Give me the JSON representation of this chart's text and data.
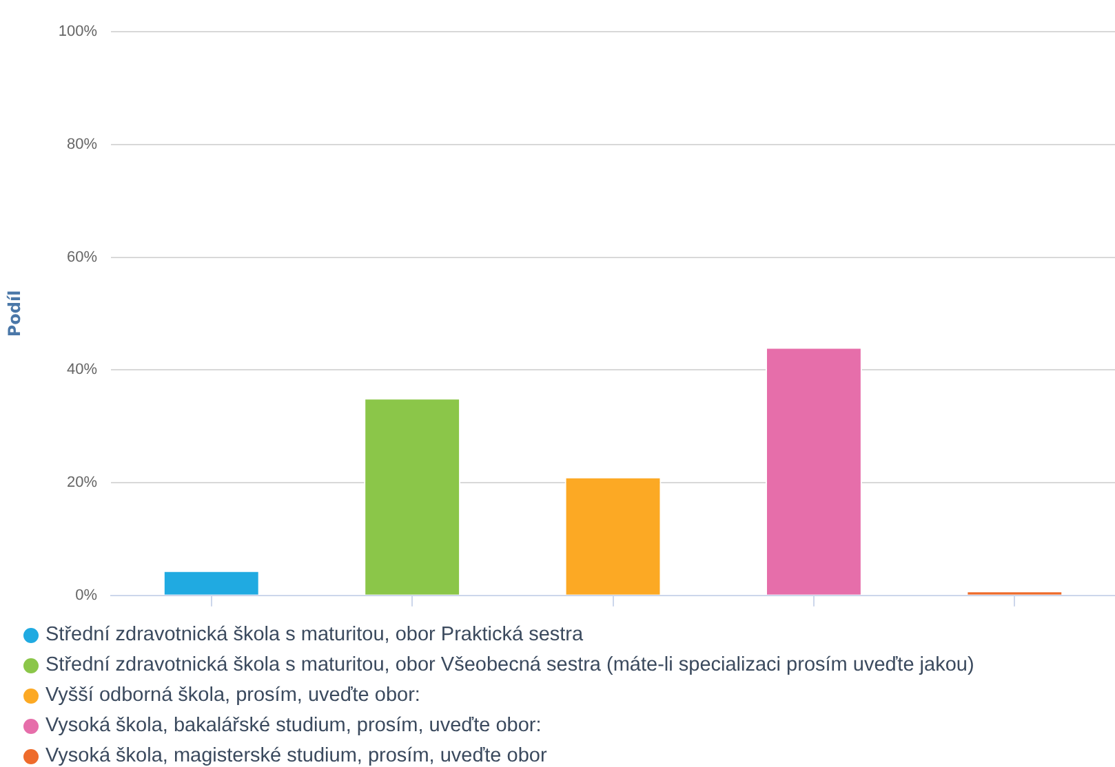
{
  "chart_data": {
    "type": "bar",
    "ylabel": "Podíl",
    "categories": [
      null,
      null,
      null,
      null,
      null
    ],
    "series": [
      {
        "name": "Střední zdravotnická škola s maturitou, obor Praktická sestra",
        "color": "#20aae1",
        "values": [
          4.4,
          null,
          null,
          null,
          null
        ]
      },
      {
        "name": "Střední zdravotnická škola s maturitou, obor Všeobecná sestra (máte-li specializaci prosím uveďte jakou)",
        "color": "#8bc649",
        "values": [
          null,
          35,
          null,
          null,
          null
        ]
      },
      {
        "name": "Vyšší odborná škola, prosím, uveďte obor:",
        "color": "#fca924",
        "values": [
          null,
          null,
          21,
          null,
          null
        ]
      },
      {
        "name": "Vysoká škola, bakalářské studium, prosím, uveďte obor:",
        "color": "#e66eaa",
        "values": [
          null,
          null,
          null,
          44,
          null
        ]
      },
      {
        "name": "Vysoká škola, magisterské studium, prosím, uveďte obor",
        "color": "#ee6b2b",
        "values": [
          null,
          null,
          null,
          null,
          0.8
        ]
      }
    ],
    "ylim": [
      0,
      100
    ],
    "yticks": [
      {
        "value": 0,
        "label": "0%"
      },
      {
        "value": 20,
        "label": "20%"
      },
      {
        "value": 40,
        "label": "40%"
      },
      {
        "value": 60,
        "label": "60%"
      },
      {
        "value": 80,
        "label": "80%"
      },
      {
        "value": 100,
        "label": "100%"
      }
    ],
    "grid": "y",
    "legend": "bottom",
    "tick_labels": "y"
  }
}
